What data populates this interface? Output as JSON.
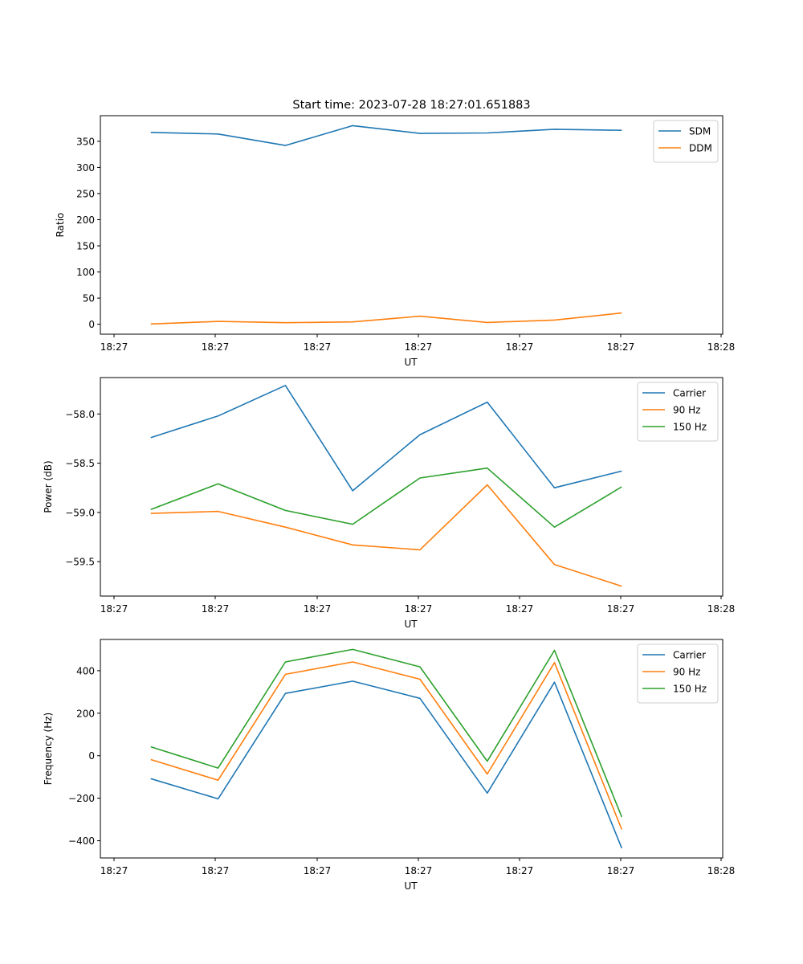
{
  "title": "Start time: 2023-07-28 18:27:01.651883",
  "chart_data": [
    {
      "type": "line",
      "xlabel": "UT",
      "ylabel": "Ratio",
      "x_tick_labels": [
        "18:27",
        "18:27",
        "18:27",
        "18:27",
        "18:27",
        "18:27",
        "18:28"
      ],
      "y_ticks": [
        0,
        50,
        100,
        150,
        200,
        250,
        300,
        350
      ],
      "y_tick_labels": [
        "0",
        "50",
        "100",
        "150",
        "200",
        "250",
        "300",
        "350"
      ],
      "ylim": [
        -19,
        399
      ],
      "x": [
        1,
        2,
        3,
        4,
        5,
        6,
        7,
        8
      ],
      "xlim": [
        0.25,
        9.5
      ],
      "legend_position": "top-right",
      "series": [
        {
          "name": "SDM",
          "color": "#1f77b4",
          "values": [
            367,
            364,
            342,
            380,
            365,
            366,
            373,
            371
          ]
        },
        {
          "name": "DDM",
          "color": "#ff7f0e",
          "values": [
            0.5,
            5.5,
            3,
            4.5,
            15.5,
            3.5,
            8,
            21.5
          ]
        }
      ]
    },
    {
      "type": "line",
      "xlabel": "UT",
      "ylabel": "Power (dB)",
      "x_tick_labels": [
        "18:27",
        "18:27",
        "18:27",
        "18:27",
        "18:27",
        "18:27",
        "18:28"
      ],
      "y_ticks": [
        -59.5,
        -59.0,
        -58.5,
        -58.0
      ],
      "y_tick_labels": [
        "−59.5",
        "−59.0",
        "−58.5",
        "−58.0"
      ],
      "ylim": [
        -59.85,
        -57.63
      ],
      "x": [
        1,
        2,
        3,
        4,
        5,
        6,
        7,
        8
      ],
      "xlim": [
        0.25,
        9.5
      ],
      "legend_position": "top-right",
      "series": [
        {
          "name": "Carrier",
          "color": "#1f77b4",
          "values": [
            -58.24,
            -58.02,
            -57.71,
            -58.78,
            -58.21,
            -57.88,
            -58.75,
            -58.58
          ]
        },
        {
          "name": "90 Hz",
          "color": "#ff7f0e",
          "values": [
            -59.01,
            -58.99,
            -59.15,
            -59.33,
            -59.38,
            -58.72,
            -59.53,
            -59.75
          ]
        },
        {
          "name": "150 Hz",
          "color": "#2ca02c",
          "values": [
            -58.97,
            -58.71,
            -58.98,
            -59.12,
            -58.65,
            -58.55,
            -59.15,
            -58.74
          ]
        }
      ]
    },
    {
      "type": "line",
      "xlabel": "UT",
      "ylabel": "Frequency (Hz)",
      "x_tick_labels": [
        "18:27",
        "18:27",
        "18:27",
        "18:27",
        "18:27",
        "18:27",
        "18:28"
      ],
      "y_ticks": [
        -400,
        -200,
        0,
        200,
        400
      ],
      "y_tick_labels": [
        "−400",
        "−200",
        "0",
        "200",
        "400"
      ],
      "ylim": [
        -481,
        547
      ],
      "x": [
        1,
        2,
        3,
        4,
        5,
        6,
        7,
        8
      ],
      "xlim": [
        0.25,
        9.5
      ],
      "legend_position": "top-right",
      "series": [
        {
          "name": "Carrier",
          "color": "#1f77b4",
          "values": [
            -108,
            -203,
            293,
            351,
            270,
            -176,
            346,
            -435
          ]
        },
        {
          "name": "90 Hz",
          "color": "#ff7f0e",
          "values": [
            -18,
            -115,
            383,
            441,
            360,
            -86,
            438,
            -347
          ]
        },
        {
          "name": "150 Hz",
          "color": "#2ca02c",
          "values": [
            42,
            -58,
            441,
            500,
            418,
            -26,
            496,
            -288
          ]
        }
      ]
    }
  ]
}
